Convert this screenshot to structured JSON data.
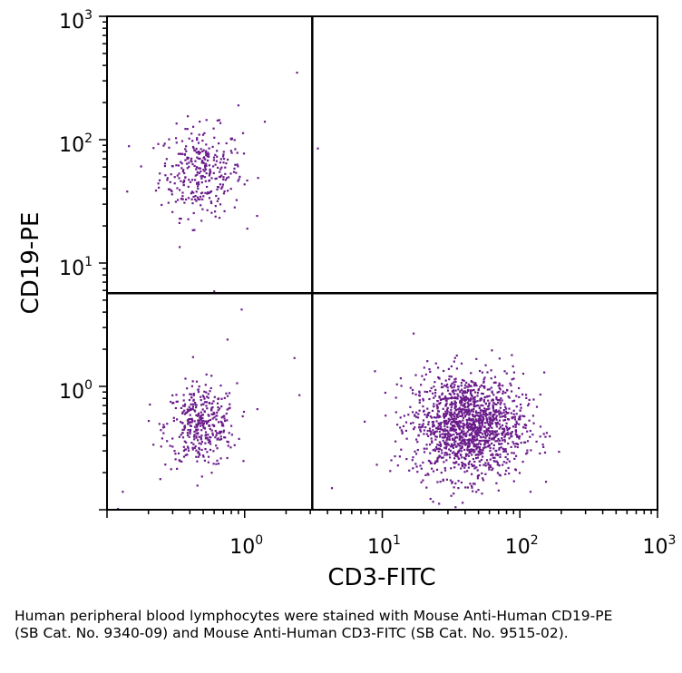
{
  "chart_data": {
    "type": "scatter",
    "xlabel": "CD3-FITC",
    "ylabel": "CD19-PE",
    "x_scale": "log",
    "y_scale": "log",
    "xlim": [
      0.1,
      1000
    ],
    "ylim": [
      0.1,
      1000
    ],
    "x_ticks": [
      {
        "base": "10",
        "exp": "0",
        "value": 1
      },
      {
        "base": "10",
        "exp": "1",
        "value": 10
      },
      {
        "base": "10",
        "exp": "2",
        "value": 100
      },
      {
        "base": "10",
        "exp": "3",
        "value": 1000
      }
    ],
    "y_ticks": [
      {
        "base": "10",
        "exp": "0",
        "value": 1
      },
      {
        "base": "10",
        "exp": "1",
        "value": 10
      },
      {
        "base": "10",
        "exp": "2",
        "value": 100
      },
      {
        "base": "10",
        "exp": "3",
        "value": 1000
      }
    ],
    "quadrant_gates": {
      "x": 3.1,
      "y": 5.7
    },
    "point_color": "#6a1b8a",
    "grid": false,
    "populations": [
      {
        "center": [
          0.48,
          55
        ],
        "spread": [
          0.15,
          0.18
        ],
        "count": 320
      },
      {
        "center": [
          0.48,
          0.48
        ],
        "spread": [
          0.13,
          0.17
        ],
        "count": 380
      },
      {
        "center": [
          42,
          0.48
        ],
        "spread": [
          0.2,
          0.21
        ],
        "count": 1500
      }
    ],
    "outliers": [
      [
        2.4,
        350
      ],
      [
        3.4,
        85
      ],
      [
        0.6,
        5.9
      ],
      [
        0.95,
        4.2
      ],
      [
        0.75,
        2.4
      ],
      [
        2.3,
        1.7
      ],
      [
        2.5,
        0.85
      ],
      [
        0.13,
        0.14
      ],
      [
        0.12,
        0.1
      ],
      [
        4.3,
        0.15
      ],
      [
        0.14,
        38
      ],
      [
        1.4,
        140
      ],
      [
        0.9,
        190
      ],
      [
        150,
        1.3
      ]
    ]
  },
  "caption": "Human peripheral blood lymphocytes were stained with Mouse Anti-Human CD19-PE (SB Cat. No. 9340-09) and Mouse Anti-Human CD3-FITC (SB Cat. No. 9515-02)."
}
